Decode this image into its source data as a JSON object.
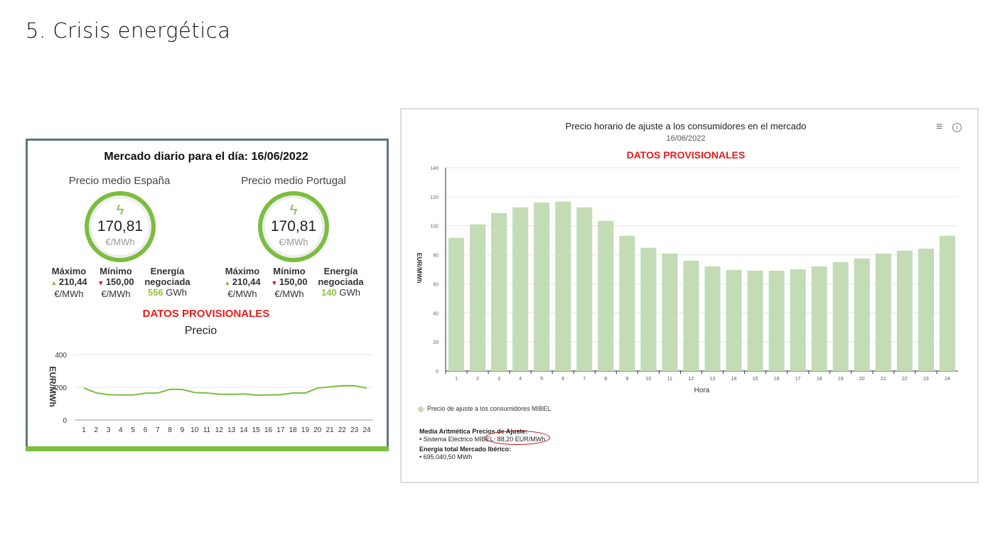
{
  "slide": {
    "title": "5. Crisis energética"
  },
  "left": {
    "title": "Mercado diario para el día: 16/06/2022",
    "spain": {
      "label": "Precio medio España",
      "price": "170,81",
      "unit": "€/MWh",
      "max_label": "Máximo",
      "max": "210,44",
      "min_label": "Mínimo",
      "min": "150,00",
      "stat_unit": "€/MWh",
      "energy_label1": "Energía",
      "energy_label2": "negociada",
      "energy": "556",
      "energy_unit": "GWh"
    },
    "portugal": {
      "label": "Precio medio Portugal",
      "price": "170,81",
      "unit": "€/MWh",
      "max_label": "Máximo",
      "max": "210,44",
      "min_label": "Mínimo",
      "min": "150,00",
      "stat_unit": "€/MWh",
      "energy_label1": "Energía",
      "energy_label2": "negociada",
      "energy": "140",
      "energy_unit": "GWh"
    },
    "provisional": "DATOS PROVISIONALES",
    "chart_title": "Precio",
    "ylabel": "EUR/MWh"
  },
  "right": {
    "title": "Precio horario de ajuste a los consumidores en el mercado",
    "date": "16/06/2022",
    "provisional": "DATOS PROVISIONALES",
    "legend": "Precio de ajuste a los consumidores MIBEL",
    "summary1": "Media Aritmética Precios de Ajuste:",
    "summary1_value": "• Sistema Eléctrico MIBEL: 88,20 EUR/MWh",
    "summary2": "Energía total Mercado Ibérico:",
    "summary2_value": "• 695.040,50 MWh"
  },
  "chart_data": [
    {
      "type": "line",
      "title": "Precio",
      "xlabel": "",
      "ylabel": "EUR/MWh",
      "ylim": [
        0,
        400
      ],
      "yticks": [
        0,
        200,
        400
      ],
      "x": [
        1,
        2,
        3,
        4,
        5,
        6,
        7,
        8,
        9,
        10,
        11,
        12,
        13,
        14,
        15,
        16,
        17,
        18,
        19,
        20,
        21,
        22,
        23,
        24
      ],
      "values": [
        196,
        166,
        155,
        153,
        153,
        164,
        165,
        188,
        187,
        168,
        165,
        158,
        157,
        160,
        152,
        153,
        155,
        165,
        165,
        195,
        203,
        210,
        210,
        195
      ],
      "color": "#7cbd3f"
    },
    {
      "type": "bar",
      "title": "Precio horario de ajuste a los consumidores en el mercado",
      "xlabel": "Hora",
      "ylabel": "EUR/MWh",
      "ylim": [
        0,
        140
      ],
      "yticks": [
        0,
        20,
        40,
        60,
        80,
        100,
        120,
        140
      ],
      "x": [
        1,
        2,
        3,
        4,
        5,
        6,
        7,
        8,
        9,
        10,
        11,
        12,
        13,
        14,
        15,
        16,
        17,
        18,
        19,
        20,
        21,
        22,
        23,
        24
      ],
      "values": [
        91.7,
        101,
        108.8,
        112.7,
        116,
        116.7,
        112.7,
        103.4,
        93.1,
        84.8,
        80.9,
        76,
        72,
        69.6,
        69.1,
        69.1,
        70,
        72,
        75,
        77.5,
        80.9,
        82.8,
        84.3,
        93.1
      ],
      "series_name": "Precio de ajuste a los consumidores MIBEL",
      "color": "#c3dcb5"
    }
  ]
}
